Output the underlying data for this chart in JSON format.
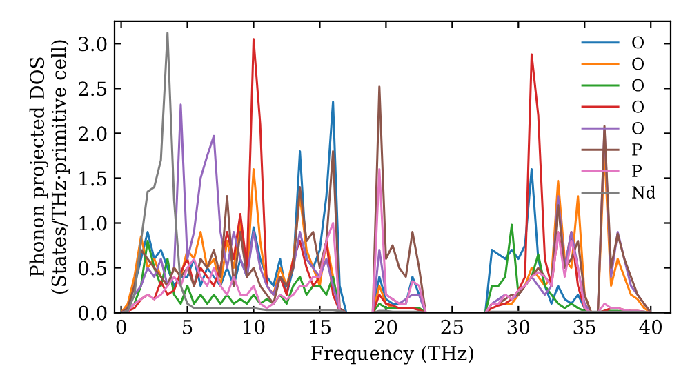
{
  "chart_data": {
    "type": "line",
    "xlabel": "Frequency (THz)",
    "ylabel": "Phonon projected DOS\n(States/THz·primitive cell)",
    "x": [
      0,
      0.5,
      1,
      1.5,
      2,
      2.5,
      3,
      3.5,
      4,
      4.5,
      5,
      5.5,
      6,
      6.5,
      7,
      7.5,
      8,
      8.5,
      9,
      9.5,
      10,
      10.5,
      11,
      11.5,
      12,
      12.5,
      13,
      13.5,
      14,
      14.5,
      15,
      15.5,
      16,
      16.5,
      17,
      17.5,
      18,
      18.5,
      19,
      19.5,
      20,
      20.5,
      21,
      21.5,
      22,
      22.5,
      23,
      23.5,
      24,
      24.5,
      25,
      25.5,
      26,
      26.5,
      27,
      27.5,
      28,
      28.5,
      29,
      29.5,
      30,
      30.5,
      31,
      31.5,
      32,
      32.5,
      33,
      33.5,
      34,
      34.5,
      35,
      35.5,
      36,
      36.5,
      37,
      37.5,
      38,
      38.5,
      39,
      39.5,
      40
    ],
    "xlim": [
      -0.5,
      41.5
    ],
    "ylim": [
      0,
      3.25
    ],
    "xticks": [
      0,
      5,
      10,
      15,
      20,
      25,
      30,
      35,
      40
    ],
    "yticks": [
      {
        "value": 0,
        "label": "0.0"
      },
      {
        "value": 0.5,
        "label": "0.5"
      },
      {
        "value": 1,
        "label": "1.0"
      },
      {
        "value": 1.5,
        "label": "1.5"
      },
      {
        "value": 2,
        "label": "2.0"
      },
      {
        "value": 2.5,
        "label": "2.5"
      },
      {
        "value": 3,
        "label": "3.0"
      }
    ],
    "legend": "top right",
    "grid": false,
    "line_style": "solid",
    "marker": "none",
    "series": [
      {
        "name": "O",
        "color": "#1f77b4",
        "values": [
          0,
          0.05,
          0.3,
          0.6,
          0.9,
          0.6,
          0.7,
          0.5,
          0.3,
          0.4,
          0.4,
          0.6,
          0.3,
          0.5,
          0.4,
          0.3,
          0.5,
          0.3,
          0.6,
          0.4,
          0.95,
          0.6,
          0.4,
          0.3,
          0.6,
          0.2,
          0.5,
          1.8,
          0.6,
          0.5,
          0.7,
          1.3,
          2.35,
          0.3,
          0,
          0,
          0,
          0,
          0,
          0.4,
          0.15,
          0.1,
          0.1,
          0.1,
          0.4,
          0.2,
          0,
          0,
          0,
          0,
          0,
          0,
          0,
          0,
          0,
          0,
          0.7,
          0.65,
          0.6,
          0.7,
          0.6,
          0.75,
          1.6,
          0.6,
          0.3,
          0.1,
          0.3,
          0.15,
          0.1,
          0.2,
          0.05,
          0,
          null,
          null,
          null,
          null,
          null,
          null,
          null,
          null,
          null
        ]
      },
      {
        "name": "O",
        "color": "#ff7f0e",
        "values": [
          0,
          0.1,
          0.4,
          0.85,
          0.5,
          0.6,
          0.4,
          0.3,
          0.5,
          0.4,
          0.7,
          0.6,
          0.9,
          0.5,
          0.6,
          0.3,
          0.8,
          0.5,
          1.0,
          0.4,
          1.6,
          0.8,
          0.3,
          0.2,
          0.5,
          0.3,
          0.6,
          1.3,
          0.7,
          0.5,
          0.3,
          0.8,
          0.4,
          0.02,
          0,
          0,
          0,
          0,
          0,
          0.3,
          0.1,
          0.05,
          0.05,
          0.05,
          0.05,
          0.05,
          0,
          0,
          0,
          0,
          0,
          0,
          0,
          0,
          0,
          0,
          0.1,
          0.1,
          0.1,
          0.1,
          0.2,
          0.3,
          0.5,
          0.4,
          0.3,
          0.4,
          1.47,
          0.6,
          0.5,
          1.3,
          0.2,
          0,
          0,
          1.8,
          0.3,
          0.6,
          0.4,
          0.2,
          0.15,
          0.05,
          0
        ]
      },
      {
        "name": "O",
        "color": "#2ca02c",
        "values": [
          0,
          0.02,
          0.1,
          0.3,
          0.8,
          0.5,
          0.3,
          0.6,
          0.2,
          0.1,
          0.3,
          0.1,
          0.2,
          0.1,
          0.2,
          0.1,
          0.2,
          0.1,
          0.15,
          0.1,
          0.2,
          0.1,
          0.15,
          0.1,
          0.2,
          0.1,
          0.3,
          0.4,
          0.2,
          0.3,
          0.3,
          0.2,
          0.4,
          0.02,
          0,
          0,
          0,
          0,
          0,
          0.1,
          0.05,
          0.05,
          0.05,
          0.05,
          0.05,
          0.05,
          0,
          0,
          0,
          0,
          0,
          0,
          0,
          0,
          0,
          0,
          0.3,
          0.3,
          0.4,
          0.98,
          0.2,
          0.3,
          0.4,
          0.65,
          0.3,
          0.2,
          0.1,
          0.05,
          0.1,
          0.05,
          0.02,
          0,
          0,
          0.02,
          0.02,
          0.02,
          0.01,
          null,
          null,
          null,
          null
        ]
      },
      {
        "name": "O",
        "color": "#d62728",
        "values": [
          0,
          0.02,
          0.05,
          0.15,
          0.2,
          0.15,
          0.35,
          0.2,
          0.25,
          0.45,
          0.6,
          0.3,
          0.5,
          0.4,
          0.3,
          0.5,
          0.9,
          0.6,
          1.1,
          0.5,
          3.05,
          2.1,
          0.3,
          0.2,
          0.4,
          0.2,
          0.6,
          0.8,
          0.5,
          0.3,
          0.4,
          0.8,
          0.2,
          0.02,
          0,
          0,
          0,
          0,
          0,
          0.2,
          0.1,
          0.08,
          0.05,
          0.05,
          0.05,
          0.03,
          0,
          0,
          0,
          0,
          0,
          0,
          0,
          0,
          0,
          0,
          0.05,
          0.08,
          0.1,
          0.15,
          0.25,
          0.4,
          2.88,
          2.2,
          0.6,
          0.3,
          0.9,
          0.5,
          0.9,
          0.3,
          0.05,
          0,
          0,
          0.02,
          0.05,
          0.05,
          0.03,
          0.02,
          0.02,
          0.01,
          0
        ]
      },
      {
        "name": "O",
        "color": "#9467bd",
        "values": [
          0,
          0.05,
          0.2,
          0.3,
          0.5,
          0.4,
          0.6,
          0.3,
          0.5,
          2.32,
          0.6,
          0.9,
          1.5,
          1.75,
          1.97,
          0.9,
          0.5,
          0.9,
          0.6,
          0.4,
          0.9,
          0.5,
          0.3,
          0.2,
          0.4,
          0.3,
          0.5,
          0.9,
          0.6,
          0.5,
          0.4,
          0.6,
          0.3,
          0.02,
          0,
          0,
          0,
          0,
          0,
          0.7,
          0.2,
          0.15,
          0.1,
          0.15,
          0.2,
          0.2,
          0,
          0,
          0,
          0,
          0,
          0,
          0,
          0,
          0,
          0,
          0.1,
          0.15,
          0.2,
          0.15,
          0.2,
          0.3,
          0.4,
          0.3,
          0.2,
          0.3,
          1.3,
          0.5,
          0.9,
          0.5,
          0.1,
          0,
          0,
          2.05,
          0.4,
          0.9,
          0.6,
          0.3,
          0.2,
          0.1,
          0
        ]
      },
      {
        "name": "P",
        "color": "#8c564b",
        "values": [
          0,
          0.05,
          0.3,
          0.7,
          0.6,
          0.5,
          0.4,
          0.3,
          0.5,
          0.4,
          0.5,
          0.3,
          0.6,
          0.5,
          0.7,
          0.4,
          1.3,
          0.3,
          0.9,
          0.4,
          0.5,
          0.3,
          0.2,
          0.1,
          0.4,
          0.3,
          0.5,
          1.4,
          0.8,
          0.9,
          0.5,
          0.8,
          1.8,
          0.05,
          0,
          0,
          0,
          0,
          0,
          2.52,
          0.6,
          0.75,
          0.5,
          0.4,
          0.9,
          0.5,
          0,
          0,
          0,
          0,
          0,
          0,
          0,
          0,
          0,
          0,
          0.1,
          0.1,
          0.15,
          0.2,
          0.2,
          0.3,
          0.4,
          0.5,
          0.4,
          0.3,
          1.2,
          0.5,
          0.6,
          0.8,
          0.2,
          0,
          0,
          2.08,
          0.5,
          0.88,
          0.6,
          0.4,
          0.2,
          0.1,
          0
        ]
      },
      {
        "name": "P",
        "color": "#e377c2",
        "values": [
          0,
          0.02,
          0.1,
          0.15,
          0.2,
          0.15,
          0.2,
          0.3,
          0.4,
          0.3,
          0.5,
          0.6,
          0.4,
          0.3,
          0.5,
          0.3,
          0.2,
          0.4,
          0.2,
          0.2,
          0.3,
          0.1,
          0.05,
          0.1,
          0.2,
          0.15,
          0.2,
          0.3,
          0.3,
          0.4,
          0.4,
          0.8,
          1.0,
          0.02,
          0,
          0,
          0,
          0,
          0,
          1.6,
          0.2,
          0.15,
          0.1,
          0.1,
          0.35,
          0.3,
          0,
          0,
          0,
          0,
          0,
          0,
          0,
          0,
          0,
          0,
          0.1,
          0.1,
          0.2,
          0.15,
          0.25,
          0.3,
          0.4,
          0.45,
          0.4,
          0.3,
          0.9,
          0.4,
          0.8,
          0.5,
          0.05,
          0,
          0,
          0.1,
          0.05,
          0.05,
          0.03,
          0.02,
          0.02,
          0.01,
          0
        ]
      },
      {
        "name": "Nd",
        "color": "#7f7f7f",
        "values": [
          0,
          0.02,
          0.2,
          0.8,
          1.35,
          1.4,
          1.7,
          3.12,
          1.25,
          0.3,
          0.1,
          0.05,
          0.05,
          0.05,
          0.05,
          0.05,
          0.05,
          0.05,
          0.05,
          0.05,
          0.05,
          0.04,
          0.03,
          0.03,
          0.03,
          0.03,
          0.03,
          0.03,
          0.03,
          0.03,
          0.03,
          0.03,
          0.03,
          0.02,
          0,
          0,
          0,
          0,
          0,
          0.02,
          0.02,
          0.01,
          0.01,
          0.01,
          0.01,
          0.01,
          0,
          0,
          0,
          0,
          0,
          0,
          0,
          0,
          0,
          0,
          0.01,
          0.01,
          0.01,
          0.01,
          0.01,
          0.01,
          0.01,
          0.01,
          0.01,
          0.01,
          0.01,
          0.01,
          0.01,
          0.01,
          0.01,
          0.01,
          0.01,
          0.01,
          0.01,
          0.01,
          0.01,
          0.01,
          0.01,
          0.01,
          0
        ]
      }
    ]
  }
}
